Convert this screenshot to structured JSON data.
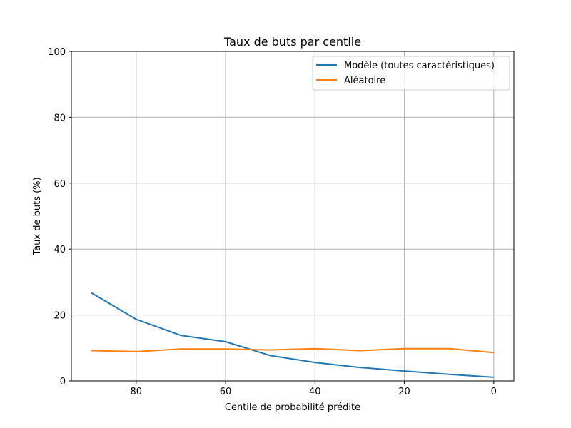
{
  "chart_data": {
    "type": "line",
    "title": "Taux de buts par centile",
    "xlabel": "Centile de probabilité prédite",
    "ylabel": "Taux de buts (%)",
    "xlim": [
      94.5,
      -4.5
    ],
    "ylim": [
      0,
      100
    ],
    "x_inverted": true,
    "xticks": [
      80,
      60,
      40,
      20,
      0
    ],
    "yticks": [
      0,
      20,
      40,
      60,
      80,
      100
    ],
    "grid": true,
    "legend_position": "top-right",
    "x": [
      90,
      80,
      70,
      60,
      50,
      40,
      30,
      20,
      10,
      0
    ],
    "series": [
      {
        "name": "Modèle (toutes caractéristiques)",
        "color": "#1f77b4",
        "values": [
          26.7,
          18.7,
          13.8,
          11.9,
          7.7,
          5.6,
          4.1,
          3.0,
          2.0,
          1.1
        ]
      },
      {
        "name": "Aléatoire",
        "color": "#ff7f0e",
        "values": [
          9.2,
          8.9,
          9.7,
          9.7,
          9.4,
          9.8,
          9.2,
          9.8,
          9.8,
          8.6
        ]
      }
    ]
  }
}
